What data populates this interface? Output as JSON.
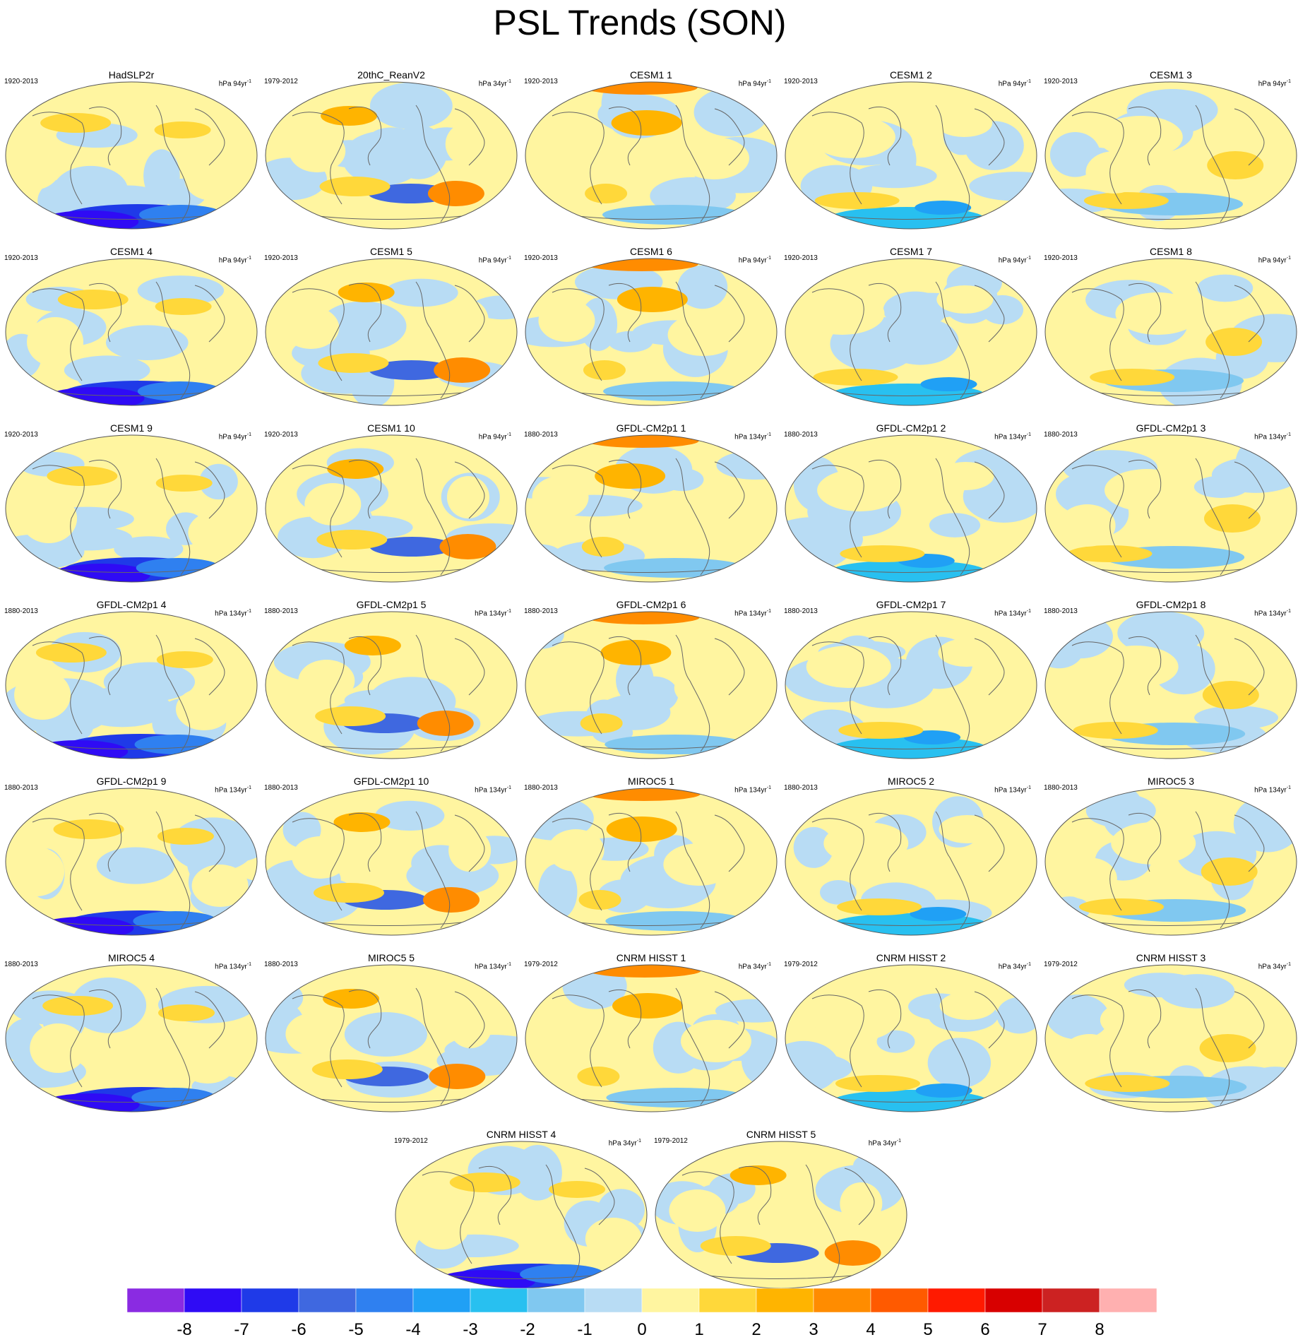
{
  "title": "PSL Trends (SON)",
  "colors": {
    "levels": [
      "#8a2be2",
      "#2f0bf5",
      "#1f3ae8",
      "#3f68e0",
      "#2f80f0",
      "#20a0f5",
      "#28c0f0",
      "#80c8f0",
      "#b8dcf4",
      "#fff5a0",
      "#ffd83a",
      "#ffb400",
      "#ff8c00",
      "#ff5a00",
      "#ff1a00",
      "#d80000",
      "#cc2222",
      "#ffb0b0"
    ],
    "coast": "#666666"
  },
  "colorbar": {
    "labels": [
      "-8",
      "-7",
      "-6",
      "-5",
      "-4",
      "-3",
      "-2",
      "-1",
      "0",
      "1",
      "2",
      "3",
      "4",
      "5",
      "6",
      "7",
      "8"
    ]
  },
  "panels": [
    {
      "name": "HadSLP2r",
      "years": "1920-2013",
      "units": "hPa 94yr",
      "exp": "-1"
    },
    {
      "name": "20thC_ReanV2",
      "years": "1979-2012",
      "units": "hPa 34yr",
      "exp": "-1"
    },
    {
      "name": "CESM1 1",
      "years": "1920-2013",
      "units": "hPa 94yr",
      "exp": "-1"
    },
    {
      "name": "CESM1 2",
      "years": "1920-2013",
      "units": "hPa 94yr",
      "exp": "-1"
    },
    {
      "name": "CESM1 3",
      "years": "1920-2013",
      "units": "hPa 94yr",
      "exp": "-1"
    },
    {
      "name": "CESM1 4",
      "years": "1920-2013",
      "units": "hPa 94yr",
      "exp": "-1"
    },
    {
      "name": "CESM1 5",
      "years": "1920-2013",
      "units": "hPa 94yr",
      "exp": "-1"
    },
    {
      "name": "CESM1 6",
      "years": "1920-2013",
      "units": "hPa 94yr",
      "exp": "-1"
    },
    {
      "name": "CESM1 7",
      "years": "1920-2013",
      "units": "hPa 94yr",
      "exp": "-1"
    },
    {
      "name": "CESM1 8",
      "years": "1920-2013",
      "units": "hPa 94yr",
      "exp": "-1"
    },
    {
      "name": "CESM1 9",
      "years": "1920-2013",
      "units": "hPa 94yr",
      "exp": "-1"
    },
    {
      "name": "CESM1 10",
      "years": "1920-2013",
      "units": "hPa 94yr",
      "exp": "-1"
    },
    {
      "name": "GFDL-CM2p1 1",
      "years": "1880-2013",
      "units": "hPa 134yr",
      "exp": "-1"
    },
    {
      "name": "GFDL-CM2p1 2",
      "years": "1880-2013",
      "units": "hPa 134yr",
      "exp": "-1"
    },
    {
      "name": "GFDL-CM2p1 3",
      "years": "1880-2013",
      "units": "hPa 134yr",
      "exp": "-1"
    },
    {
      "name": "GFDL-CM2p1 4",
      "years": "1880-2013",
      "units": "hPa 134yr",
      "exp": "-1"
    },
    {
      "name": "GFDL-CM2p1 5",
      "years": "1880-2013",
      "units": "hPa 134yr",
      "exp": "-1"
    },
    {
      "name": "GFDL-CM2p1 6",
      "years": "1880-2013",
      "units": "hPa 134yr",
      "exp": "-1"
    },
    {
      "name": "GFDL-CM2p1 7",
      "years": "1880-2013",
      "units": "hPa 134yr",
      "exp": "-1"
    },
    {
      "name": "GFDL-CM2p1 8",
      "years": "1880-2013",
      "units": "hPa 134yr",
      "exp": "-1"
    },
    {
      "name": "GFDL-CM2p1 9",
      "years": "1880-2013",
      "units": "hPa 134yr",
      "exp": "-1"
    },
    {
      "name": "GFDL-CM2p1 10",
      "years": "1880-2013",
      "units": "hPa 134yr",
      "exp": "-1"
    },
    {
      "name": "MIROC5 1",
      "years": "1880-2013",
      "units": "hPa 134yr",
      "exp": "-1"
    },
    {
      "name": "MIROC5 2",
      "years": "1880-2013",
      "units": "hPa 134yr",
      "exp": "-1"
    },
    {
      "name": "MIROC5 3",
      "years": "1880-2013",
      "units": "hPa 134yr",
      "exp": "-1"
    },
    {
      "name": "MIROC5 4",
      "years": "1880-2013",
      "units": "hPa 134yr",
      "exp": "-1"
    },
    {
      "name": "MIROC5 5",
      "years": "1880-2013",
      "units": "hPa 134yr",
      "exp": "-1"
    },
    {
      "name": "CNRM HISST 1",
      "years": "1979-2012",
      "units": "hPa 34yr",
      "exp": "-1"
    },
    {
      "name": "CNRM HISST 2",
      "years": "1979-2012",
      "units": "hPa 34yr",
      "exp": "-1"
    },
    {
      "name": "CNRM HISST 3",
      "years": "1979-2012",
      "units": "hPa 34yr",
      "exp": "-1"
    },
    {
      "name": "CNRM HISST 4",
      "years": "1979-2012",
      "units": "hPa 34yr",
      "exp": "-1"
    },
    {
      "name": "CNRM HISST 5",
      "years": "1979-2012",
      "units": "hPa 34yr",
      "exp": "-1"
    }
  ]
}
